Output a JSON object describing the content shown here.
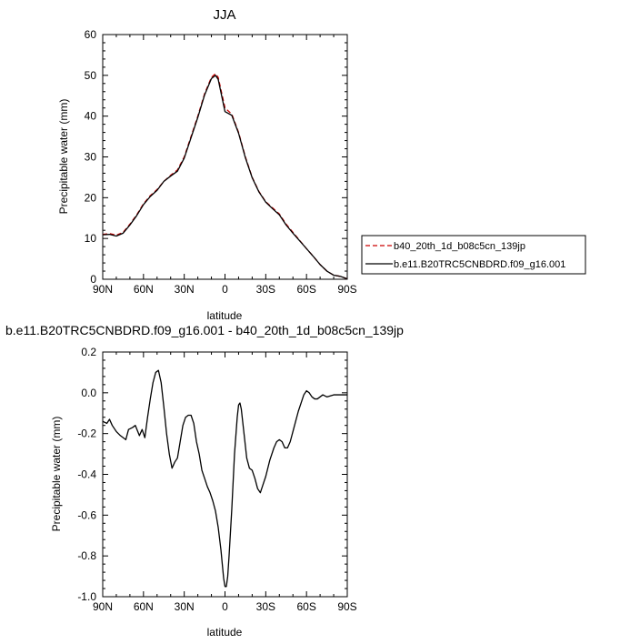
{
  "chart_data": [
    {
      "type": "line",
      "title": "JJA",
      "xlabel": "latitude",
      "ylabel": "Precipitable water (mm)",
      "xlim": [
        90,
        -90
      ],
      "ylim": [
        0,
        60
      ],
      "x_ticks": [
        90,
        60,
        30,
        0,
        -30,
        -60,
        -90
      ],
      "x_tick_labels": [
        "90N",
        "60N",
        "30N",
        "0",
        "30S",
        "60S",
        "90S"
      ],
      "y_ticks": [
        0,
        10,
        20,
        30,
        40,
        50,
        60
      ],
      "y_tick_labels": [
        "0",
        "10",
        "20",
        "30",
        "40",
        "50",
        "60"
      ],
      "legend": "right-bottom-outside",
      "series": [
        {
          "name": "b40_20th_1d_b08c5cn_139jp",
          "color": "#cc0000",
          "dash": "dashed",
          "x": [
            90,
            85,
            80,
            75,
            70,
            65,
            60,
            55,
            50,
            45,
            40,
            35,
            30,
            25,
            20,
            15,
            10,
            7,
            5,
            0,
            -5,
            -10,
            -15,
            -20,
            -25,
            -30,
            -35,
            -40,
            -45,
            -50,
            -55,
            -60,
            -65,
            -70,
            -75,
            -80,
            -85,
            -90
          ],
          "values": [
            11.0,
            11.2,
            10.8,
            11.5,
            13.5,
            15.8,
            18.5,
            20.5,
            22.0,
            24.0,
            25.5,
            26.8,
            30.0,
            35.0,
            40.0,
            45.5,
            49.5,
            50.4,
            49.5,
            42.0,
            40.5,
            36.0,
            30.0,
            25.0,
            21.5,
            19.0,
            17.5,
            16.0,
            13.5,
            11.5,
            9.5,
            7.5,
            5.6,
            3.6,
            2.0,
            1.0,
            0.7,
            0.1
          ]
        },
        {
          "name": "b.e11.B20TRC5CNBDRD.f09_g16.001",
          "color": "#000000",
          "dash": "solid",
          "x": [
            90,
            85,
            80,
            75,
            70,
            65,
            60,
            55,
            50,
            45,
            40,
            35,
            30,
            25,
            20,
            15,
            10,
            7,
            5,
            0,
            -5,
            -10,
            -15,
            -20,
            -25,
            -30,
            -35,
            -40,
            -45,
            -50,
            -55,
            -60,
            -65,
            -70,
            -75,
            -80,
            -85,
            -90
          ],
          "values": [
            10.9,
            11.0,
            10.6,
            11.3,
            13.3,
            15.6,
            18.3,
            20.3,
            21.8,
            24.0,
            25.3,
            26.5,
            29.7,
            34.7,
            39.7,
            45.2,
            49.2,
            50.0,
            49.0,
            41.1,
            40.2,
            35.8,
            29.8,
            24.9,
            21.4,
            18.9,
            17.3,
            15.8,
            13.3,
            11.3,
            9.4,
            7.5,
            5.6,
            3.6,
            2.0,
            1.0,
            0.7,
            0.1
          ]
        }
      ]
    },
    {
      "type": "line",
      "title": "b.e11.B20TRC5CNBDRD.f09_g16.001 - b40_20th_1d_b08c5cn_139jp",
      "xlabel": "latitude",
      "ylabel": "Precipitable water (mm)",
      "xlim": [
        90,
        -90
      ],
      "ylim": [
        -1.0,
        0.2
      ],
      "x_ticks": [
        90,
        60,
        30,
        0,
        -30,
        -60,
        -90
      ],
      "x_tick_labels": [
        "90N",
        "60N",
        "30N",
        "0",
        "30S",
        "60S",
        "90S"
      ],
      "y_ticks": [
        0.2,
        0.0,
        -0.2,
        -0.4,
        -0.6,
        -0.8,
        -1.0
      ],
      "y_tick_labels": [
        "0.2",
        "0.0",
        "-0.2",
        "-0.4",
        "-0.6",
        "-0.8",
        "-1.0"
      ],
      "series": [
        {
          "color": "#000000",
          "dash": "solid",
          "x": [
            90,
            87,
            85,
            83,
            80,
            77,
            75,
            73,
            71,
            68,
            66,
            63,
            61,
            59,
            57,
            55,
            53,
            51,
            49,
            47,
            45,
            43,
            41,
            39,
            37,
            35,
            33,
            31,
            29,
            27,
            25,
            23,
            21,
            19,
            17,
            15,
            13,
            11,
            9,
            7,
            5,
            3,
            2,
            1,
            0,
            -1,
            -2,
            -3,
            -5,
            -7,
            -9,
            -10,
            -11,
            -12,
            -14,
            -16,
            -18,
            -20,
            -22,
            -24,
            -26,
            -28,
            -30,
            -33,
            -36,
            -38,
            -40,
            -42,
            -44,
            -46,
            -48,
            -50,
            -52,
            -54,
            -56,
            -58,
            -60,
            -62,
            -64,
            -66,
            -68,
            -70,
            -72,
            -75,
            -80,
            -85,
            -90
          ],
          "values": [
            -0.14,
            -0.15,
            -0.13,
            -0.16,
            -0.19,
            -0.21,
            -0.22,
            -0.23,
            -0.18,
            -0.17,
            -0.16,
            -0.21,
            -0.18,
            -0.22,
            -0.12,
            -0.03,
            0.05,
            0.1,
            0.11,
            0.05,
            -0.07,
            -0.2,
            -0.3,
            -0.37,
            -0.34,
            -0.32,
            -0.24,
            -0.16,
            -0.12,
            -0.11,
            -0.11,
            -0.15,
            -0.24,
            -0.3,
            -0.38,
            -0.42,
            -0.46,
            -0.49,
            -0.53,
            -0.58,
            -0.66,
            -0.77,
            -0.84,
            -0.91,
            -0.95,
            -0.95,
            -0.9,
            -0.8,
            -0.57,
            -0.3,
            -0.12,
            -0.06,
            -0.05,
            -0.08,
            -0.2,
            -0.32,
            -0.37,
            -0.38,
            -0.42,
            -0.47,
            -0.49,
            -0.45,
            -0.41,
            -0.33,
            -0.27,
            -0.24,
            -0.23,
            -0.24,
            -0.27,
            -0.27,
            -0.24,
            -0.19,
            -0.14,
            -0.09,
            -0.05,
            -0.01,
            0.01,
            0.0,
            -0.02,
            -0.03,
            -0.03,
            -0.02,
            -0.01,
            -0.02,
            -0.01,
            -0.01,
            -0.01
          ]
        }
      ]
    }
  ]
}
